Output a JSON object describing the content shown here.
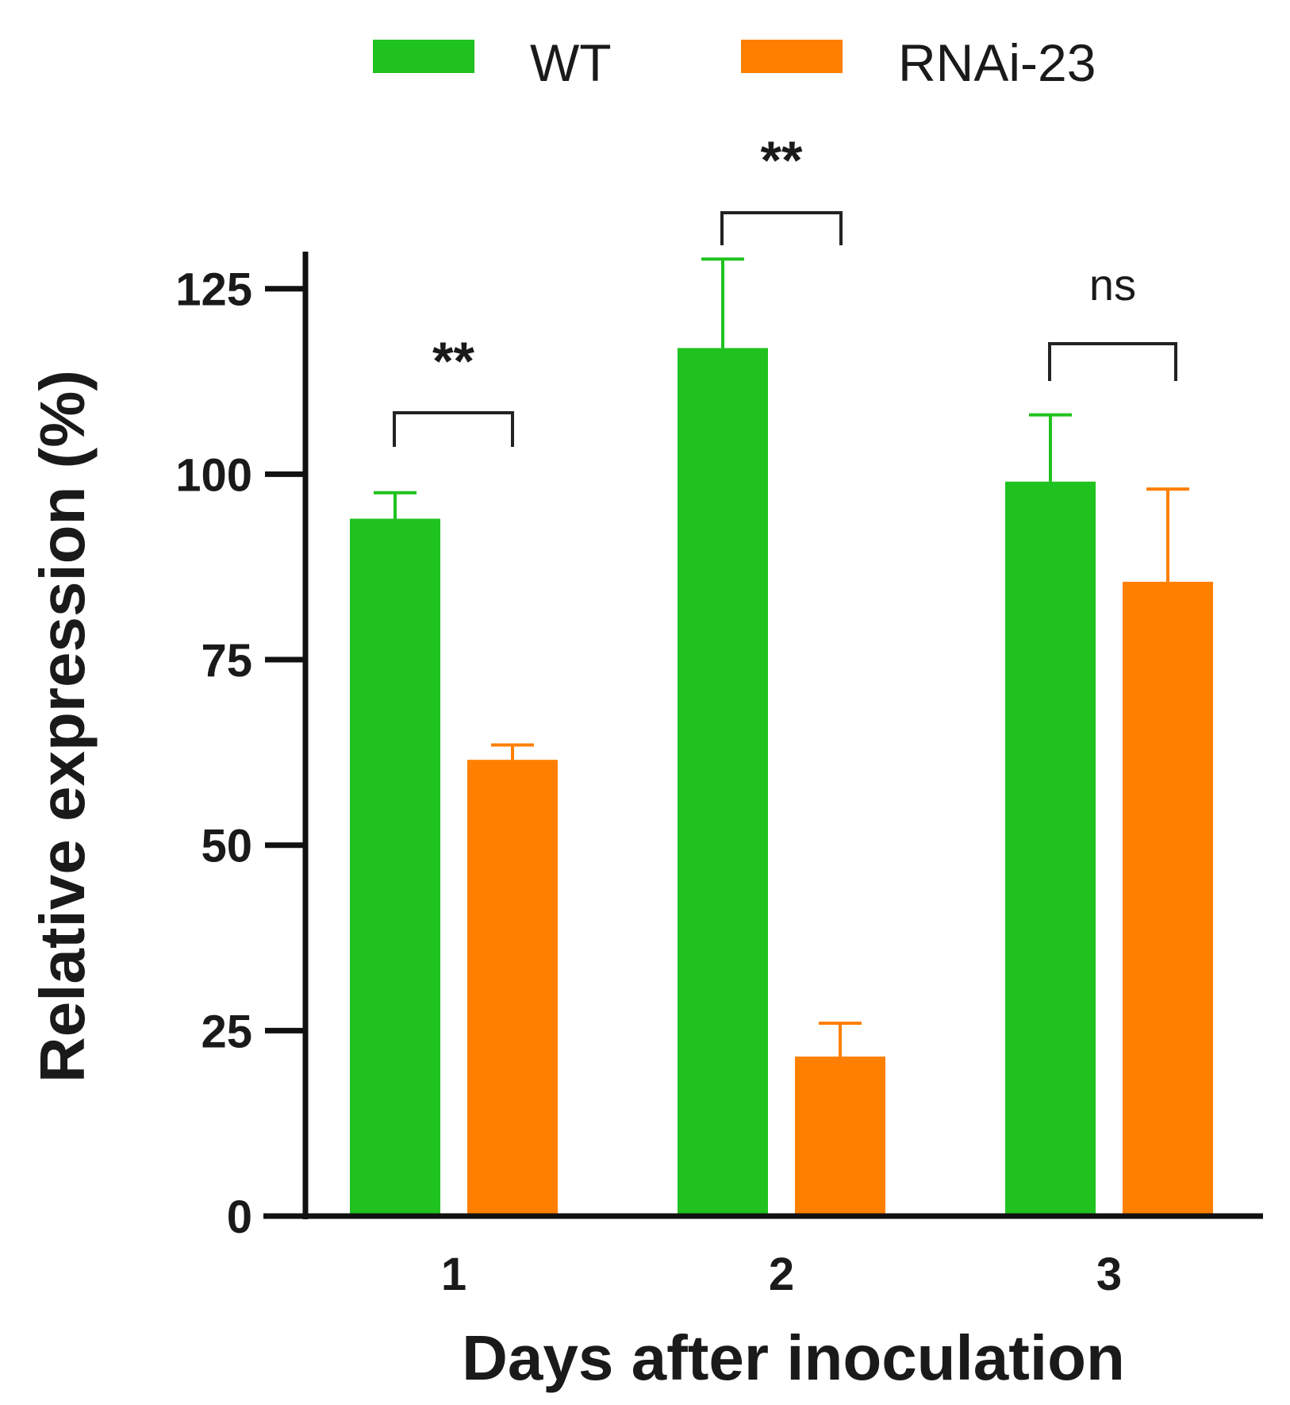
{
  "chart_data": {
    "type": "bar",
    "title": "",
    "xlabel": "Days after inoculation",
    "ylabel": "Relative expression (%)",
    "ylim": [
      0,
      130
    ],
    "yticks": [
      0,
      25,
      50,
      75,
      100,
      125
    ],
    "categories": [
      "1",
      "2",
      "3"
    ],
    "series": [
      {
        "name": "WT",
        "color": "#1fc21f",
        "values": [
          94,
          117,
          99
        ],
        "errors": [
          3.5,
          12,
          9
        ]
      },
      {
        "name": "RNAi-23",
        "color": "#ff7f00",
        "values": [
          61.5,
          21.5,
          85.5
        ],
        "errors": [
          2,
          4.5,
          12.5
        ]
      }
    ],
    "legend": {
      "placement": "top-center"
    },
    "significance": [
      {
        "category": "1",
        "label": "**"
      },
      {
        "category": "2",
        "label": "**"
      },
      {
        "category": "3",
        "label": "ns"
      }
    ]
  }
}
